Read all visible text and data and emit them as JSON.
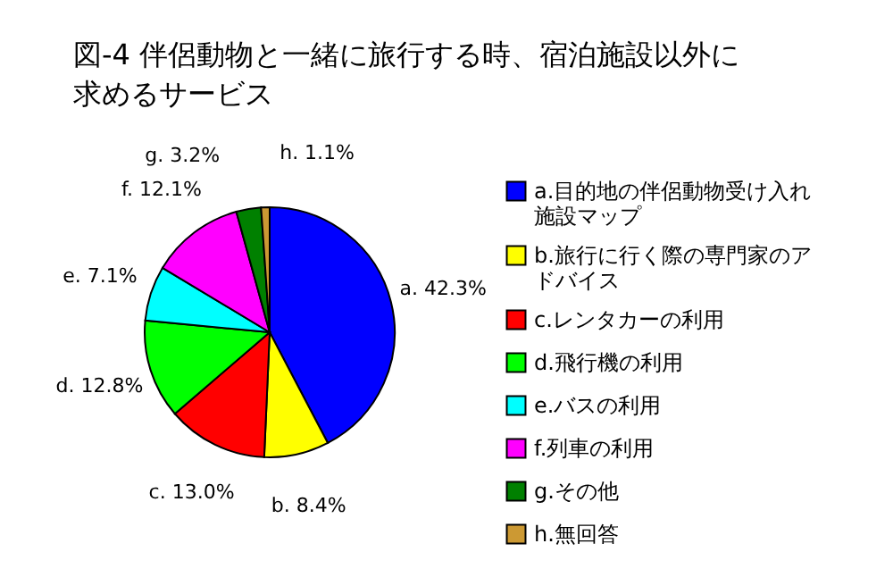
{
  "chart_data": {
    "type": "pie",
    "title": "図-4 伴侶動物と一緒に旅行する時、宿泊施設以外に求めるサービス",
    "categories": [
      "a.目的地の伴侶動物受け入れ施設マップ",
      "b.旅行に行く際の専門家のアドバイス",
      "c.レンタカーの利用",
      "d.飛行機の利用",
      "e.バスの利用",
      "f.列車の利用",
      "g.その他",
      "h.無回答"
    ],
    "values": [
      42.3,
      8.4,
      13.0,
      12.8,
      7.1,
      12.1,
      3.2,
      1.1
    ],
    "colors": [
      "#0000ff",
      "#ffff00",
      "#ff0000",
      "#00ff00",
      "#00ffff",
      "#ff00ff",
      "#008000",
      "#cc9933"
    ],
    "value_labels": [
      "a. 42.3%",
      "b. 8.4%",
      "c. 13.0%",
      "d. 12.8%",
      "e. 7.1%",
      "f. 12.1%",
      "g. 3.2%",
      "h. 1.1%"
    ],
    "legend": "right"
  }
}
